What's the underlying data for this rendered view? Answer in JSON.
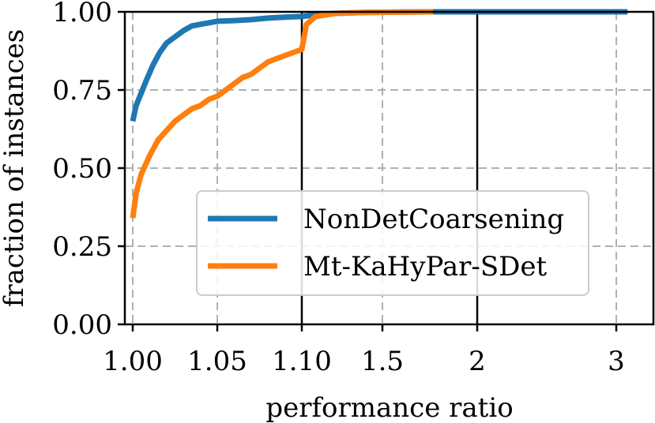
{
  "chart_data": {
    "type": "line",
    "title": "",
    "xlabel": "performance ratio",
    "ylabel": "fraction of instances",
    "ylim": [
      0.0,
      1.0
    ],
    "grid": true,
    "legend_position": "center-right",
    "x_scale_note": "piecewise axis: linear 1.00-1.10, then log-like 1.1-3",
    "x_ticks": [
      {
        "value": 1.0,
        "label": "1.00"
      },
      {
        "value": 1.05,
        "label": "1.05"
      },
      {
        "value": 1.1,
        "label": "1.10"
      },
      {
        "value": 1.5,
        "label": "1.5"
      },
      {
        "value": 2,
        "label": "2"
      },
      {
        "value": 3,
        "label": "3"
      }
    ],
    "y_ticks": [
      {
        "value": 0.0,
        "label": "0.00"
      },
      {
        "value": 0.25,
        "label": "0.25"
      },
      {
        "value": 0.5,
        "label": "0.50"
      },
      {
        "value": 0.75,
        "label": "0.75"
      },
      {
        "value": 1.0,
        "label": "1.00"
      }
    ],
    "segment_dividers": [
      1.1,
      2
    ],
    "series": [
      {
        "name": "NonDetCoarsening",
        "color": "#1f77b4",
        "points": [
          [
            1.0,
            0.65
          ],
          [
            1.002,
            0.7
          ],
          [
            1.005,
            0.74
          ],
          [
            1.008,
            0.78
          ],
          [
            1.012,
            0.83
          ],
          [
            1.016,
            0.87
          ],
          [
            1.02,
            0.9
          ],
          [
            1.025,
            0.92
          ],
          [
            1.03,
            0.94
          ],
          [
            1.035,
            0.955
          ],
          [
            1.04,
            0.96
          ],
          [
            1.045,
            0.965
          ],
          [
            1.05,
            0.97
          ],
          [
            1.06,
            0.972
          ],
          [
            1.07,
            0.975
          ],
          [
            1.08,
            0.98
          ],
          [
            1.09,
            0.983
          ],
          [
            1.1,
            0.985
          ],
          [
            1.15,
            0.99
          ],
          [
            1.25,
            0.995
          ],
          [
            1.4,
            0.998
          ],
          [
            1.7,
            1.0
          ],
          [
            2.3,
            1.0
          ],
          [
            3.1,
            1.0
          ]
        ]
      },
      {
        "name": "Mt-KaHyPar-SDet",
        "color": "#ff7f0e",
        "points": [
          [
            1.0,
            0.34
          ],
          [
            1.002,
            0.42
          ],
          [
            1.005,
            0.48
          ],
          [
            1.01,
            0.54
          ],
          [
            1.015,
            0.59
          ],
          [
            1.02,
            0.62
          ],
          [
            1.025,
            0.65
          ],
          [
            1.03,
            0.67
          ],
          [
            1.035,
            0.69
          ],
          [
            1.04,
            0.7
          ],
          [
            1.045,
            0.72
          ],
          [
            1.05,
            0.73
          ],
          [
            1.055,
            0.75
          ],
          [
            1.06,
            0.77
          ],
          [
            1.065,
            0.79
          ],
          [
            1.07,
            0.8
          ],
          [
            1.075,
            0.82
          ],
          [
            1.08,
            0.84
          ],
          [
            1.085,
            0.85
          ],
          [
            1.09,
            0.86
          ],
          [
            1.095,
            0.87
          ],
          [
            1.1,
            0.88
          ],
          [
            1.12,
            0.96
          ],
          [
            1.16,
            0.985
          ],
          [
            1.25,
            0.995
          ],
          [
            1.4,
            0.998
          ],
          [
            1.75,
            1.0
          ]
        ]
      }
    ]
  }
}
